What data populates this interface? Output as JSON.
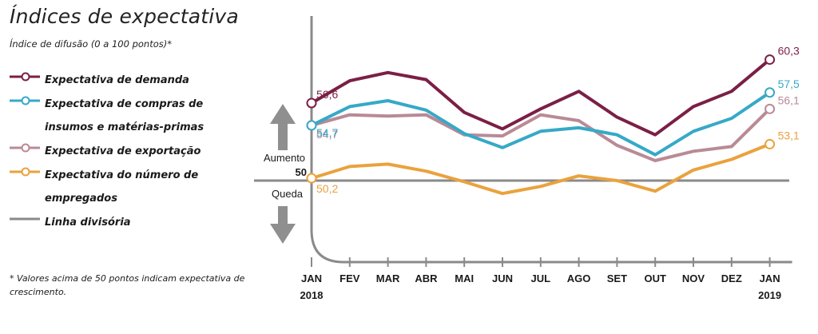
{
  "title": "Índices de expectativa",
  "subtitle": "Índice de difusão (0 a 100 pontos)*",
  "footnote": "* Valores acima de 50 pontos indicam expectativa de crescimento.",
  "legend": [
    {
      "label": "Expectativa de demanda",
      "color": "#7b1f45",
      "marker": "circle"
    },
    {
      "label": "Expectativa de compras de insumos e matérias-primas",
      "color": "#36a9c7",
      "marker": "circle"
    },
    {
      "label": "Expectativa de exportação",
      "color": "#b98a96",
      "marker": "circle"
    },
    {
      "label": "Expectativa do número de empregados",
      "color": "#eaa23d",
      "marker": "circle"
    },
    {
      "label": "Linha divisória",
      "color": "#8a8a8a",
      "marker": "line"
    }
  ],
  "annotations": {
    "increase": "Aumento",
    "decrease": "Queda",
    "baseline_label": "50",
    "arrow_color": "#8f8f8f"
  },
  "chart_data": {
    "type": "line",
    "title": "Índices de expectativa",
    "subtitle": "Índice de difusão (0 a 100 pontos)*",
    "x": [
      "JAN",
      "FEV",
      "MAR",
      "ABR",
      "MAI",
      "JUN",
      "JUL",
      "AGO",
      "SET",
      "OUT",
      "NOV",
      "DEZ",
      "JAN"
    ],
    "x_years": {
      "0": "2018",
      "12": "2019"
    },
    "baseline": 50,
    "grid": false,
    "series": [
      {
        "name": "Expectativa de demanda",
        "color": "#7b1f45",
        "values": [
          56.6,
          58.5,
          59.2,
          58.6,
          55.8,
          54.4,
          56.1,
          57.6,
          55.4,
          53.9,
          56.3,
          57.6,
          60.3
        ],
        "labels": {
          "0": "56,6",
          "12": "60,3"
        }
      },
      {
        "name": "Expectativa de compras de insumos e matérias-primas",
        "color": "#36a9c7",
        "values": [
          54.7,
          56.3,
          56.8,
          56.0,
          54.0,
          52.8,
          54.2,
          54.5,
          53.9,
          52.2,
          54.2,
          55.3,
          57.5
        ],
        "labels": {
          "0": "54,7",
          "12": "57,5"
        }
      },
      {
        "name": "Expectativa de exportação",
        "color": "#b98a96",
        "values": [
          54.7,
          55.6,
          55.5,
          55.6,
          53.9,
          53.8,
          55.6,
          55.1,
          53.0,
          51.7,
          52.5,
          52.9,
          56.1
        ],
        "labels": {
          "0": "54,7",
          "12": "56,1"
        }
      },
      {
        "name": "Expectativa do número de empregados",
        "color": "#eaa23d",
        "values": [
          50.2,
          51.2,
          51.4,
          50.8,
          49.9,
          48.9,
          49.5,
          50.4,
          50.0,
          49.1,
          50.9,
          51.8,
          53.1
        ],
        "labels": {
          "0": "50,2",
          "12": "53,1"
        }
      }
    ]
  }
}
